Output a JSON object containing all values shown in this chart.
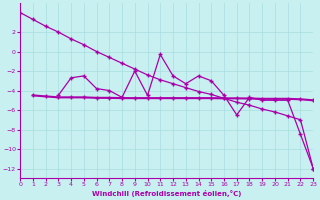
{
  "background_color": "#c8f0f0",
  "grid_color": "#a8dde0",
  "line_color": "#aa00aa",
  "x": [
    0,
    1,
    2,
    3,
    4,
    5,
    6,
    7,
    8,
    9,
    10,
    11,
    12,
    13,
    14,
    15,
    16,
    17,
    18,
    19,
    20,
    21,
    22,
    23
  ],
  "y_zigzag": [
    null,
    null,
    null,
    -4.5,
    -2.7,
    -2.5,
    -3.8,
    -4.0,
    -4.7,
    -2.0,
    -4.5,
    -0.3,
    -2.5,
    -3.3,
    -2.5,
    -3.0,
    -4.5,
    -6.5,
    -4.7,
    -5.0,
    -5.0,
    -5.0,
    -8.5,
    -12.0
  ],
  "y_flat": [
    null,
    -4.5,
    -4.6,
    -4.7,
    -4.7,
    -4.7,
    -4.75,
    -4.75,
    -4.78,
    -4.78,
    -4.78,
    -4.78,
    -4.78,
    -4.78,
    -4.78,
    -4.78,
    -4.8,
    -4.8,
    -4.82,
    -4.85,
    -4.85,
    -4.85,
    -4.9,
    -5.0
  ],
  "y_diag": [
    4.0,
    3.3,
    2.6,
    2.0,
    1.3,
    0.7,
    0.0,
    -0.6,
    -1.2,
    -1.8,
    -2.4,
    -2.9,
    -3.3,
    -3.7,
    -4.1,
    -4.4,
    -4.8,
    -5.2,
    -5.5,
    -5.9,
    -6.2,
    -6.6,
    -7.0,
    -12.0
  ],
  "x_start_zigzag": 3,
  "xlabel": "Windchill (Refroidissement éolien,°C)",
  "xlim": [
    0,
    23
  ],
  "ylim": [
    -13,
    5
  ],
  "yticks": [
    2,
    0,
    -2,
    -4,
    -6,
    -8,
    -10,
    -12
  ],
  "xticks": [
    0,
    1,
    2,
    3,
    4,
    5,
    6,
    7,
    8,
    9,
    10,
    11,
    12,
    13,
    14,
    15,
    16,
    17,
    18,
    19,
    20,
    21,
    22,
    23
  ]
}
